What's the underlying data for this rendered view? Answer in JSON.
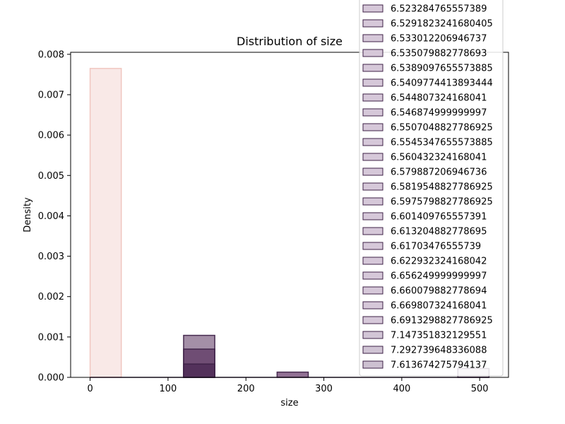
{
  "chart_data": {
    "type": "bar",
    "title": "Distribution of size",
    "xlabel": "size",
    "ylabel": "Density",
    "xlim": [
      -25,
      537
    ],
    "ylim": [
      0,
      0.00805
    ],
    "xticks": [
      0,
      100,
      200,
      300,
      400,
      500
    ],
    "yticks": [
      0.0,
      0.001,
      0.002,
      0.003,
      0.004,
      0.005,
      0.006,
      0.007,
      0.008
    ],
    "ytick_labels": [
      "0.000",
      "0.001",
      "0.002",
      "0.003",
      "0.004",
      "0.005",
      "0.006",
      "0.007",
      "0.008"
    ],
    "grid": false,
    "legend_placement": "upper-right, extending above axes",
    "bars": [
      {
        "x0": 0,
        "x1": 40,
        "y": 0.00765,
        "color": "#f9e8e6",
        "edge": "#f0c4bd"
      },
      {
        "x0": 120,
        "x1": 160,
        "y": 0.00104,
        "color": "#a08aa3",
        "edge": "#3d2046"
      },
      {
        "x0": 120,
        "x1": 160,
        "y": 0.0007,
        "color": "#6d4a72",
        "edge": "#3d2046"
      },
      {
        "x0": 120,
        "x1": 160,
        "y": 0.00033,
        "color": "#52305a",
        "edge": "#3d2046"
      },
      {
        "x0": 240,
        "x1": 280,
        "y": 0.00013,
        "color": "#8d6a8f",
        "edge": "#3d2046"
      },
      {
        "x0": 472,
        "x1": 512,
        "y": 0.00022,
        "color": "#d3c5d3",
        "edge": "#3d2046"
      }
    ],
    "legend": [
      {
        "label": "6.523284765557389",
        "color": "#d6c8d9"
      },
      {
        "label": "6.5291823241680405",
        "color": "#d6c8d9"
      },
      {
        "label": "6.533012206946737",
        "color": "#d6c8d9"
      },
      {
        "label": "6.535079882778693",
        "color": "#d6c8d9"
      },
      {
        "label": "6.5389097655573885",
        "color": "#d6c8d9"
      },
      {
        "label": "6.5409774413893444",
        "color": "#d6c8d9"
      },
      {
        "label": "6.544807324168041",
        "color": "#d6c8d9"
      },
      {
        "label": "6.546874999999997",
        "color": "#d6c8d9"
      },
      {
        "label": "6.5507048827786925",
        "color": "#d6c8d9"
      },
      {
        "label": "6.5545347655573885",
        "color": "#d6c8d9"
      },
      {
        "label": "6.560432324168041",
        "color": "#d6c8d9"
      },
      {
        "label": "6.579887206946736",
        "color": "#d6c8d9"
      },
      {
        "label": "6.5819548827786925",
        "color": "#d6c8d9"
      },
      {
        "label": "6.5975798827786925",
        "color": "#d6c8d9"
      },
      {
        "label": "6.601409765557391",
        "color": "#d6c8d9"
      },
      {
        "label": "6.613204882778695",
        "color": "#d6c8d9"
      },
      {
        "label": "6.61703476555739",
        "color": "#d6c8d9"
      },
      {
        "label": "6.622932324168042",
        "color": "#d6c8d9"
      },
      {
        "label": "6.656249999999997",
        "color": "#d6c8d9"
      },
      {
        "label": "6.660079882778694",
        "color": "#d6c8d9"
      },
      {
        "label": "6.669807324168041",
        "color": "#d6c8d9"
      },
      {
        "label": "6.6913298827786925",
        "color": "#d6c8d9"
      },
      {
        "label": "7.147351832129551",
        "color": "#d2c6d6"
      },
      {
        "label": "7.292739648336088",
        "color": "#d0c4d4"
      },
      {
        "label": "7.613674275794137",
        "color": "#cdc1d1"
      }
    ]
  }
}
